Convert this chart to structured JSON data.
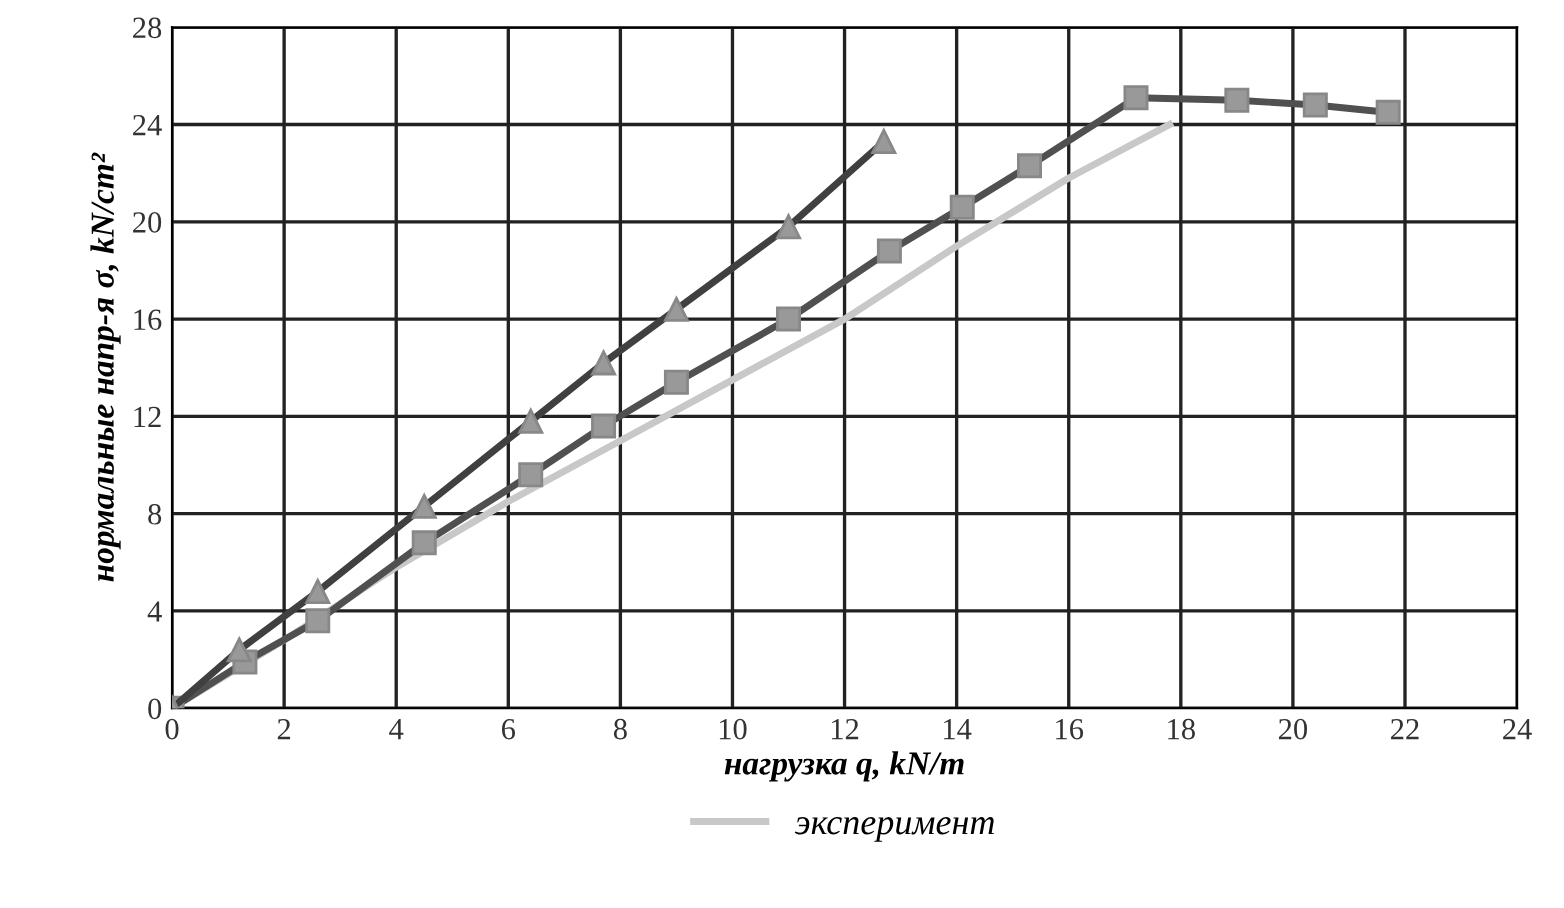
{
  "chart_data": {
    "type": "line",
    "xlabel": "нагрузка q, kN/m",
    "ylabel": "нормальные напр-я σ, kN/cm²",
    "xlim": [
      0,
      24
    ],
    "xticks": [
      0,
      2,
      4,
      6,
      8,
      10,
      12,
      14,
      16,
      18,
      20,
      22,
      24
    ],
    "ylim": [
      0,
      28
    ],
    "yticks": [
      0,
      4,
      8,
      12,
      16,
      20,
      24,
      28
    ],
    "grid": true,
    "legend": "bottom",
    "series": [
      {
        "color": "#505050",
        "marker": "square",
        "x": [
          0,
          1.3,
          2.6,
          4.5,
          6.4,
          7.7,
          9,
          11,
          12.8,
          14.1,
          15.3,
          17.2,
          19,
          20.4,
          21.7
        ],
        "values": [
          0,
          1.9,
          3.6,
          6.8,
          9.6,
          11.6,
          13.4,
          16,
          18.8,
          20.6,
          22.3,
          25.1,
          25,
          24.8,
          24.5
        ]
      },
      {
        "color": "#404040",
        "marker": "triangle",
        "x": [
          0,
          1.2,
          2.6,
          4.5,
          6.4,
          7.7,
          9,
          11,
          12.7
        ],
        "values": [
          0,
          2.4,
          4.8,
          8.3,
          11.8,
          14.2,
          16.4,
          19.8,
          23.3
        ]
      },
      {
        "name": "эксперимент",
        "color": "#c8c8c8",
        "marker": "none",
        "x": [
          0,
          2,
          4,
          6,
          8,
          10,
          12,
          14,
          16,
          17.8
        ],
        "values": [
          0,
          2.8,
          5.8,
          8.5,
          11,
          13.5,
          16,
          19,
          21.8,
          24
        ]
      }
    ]
  }
}
